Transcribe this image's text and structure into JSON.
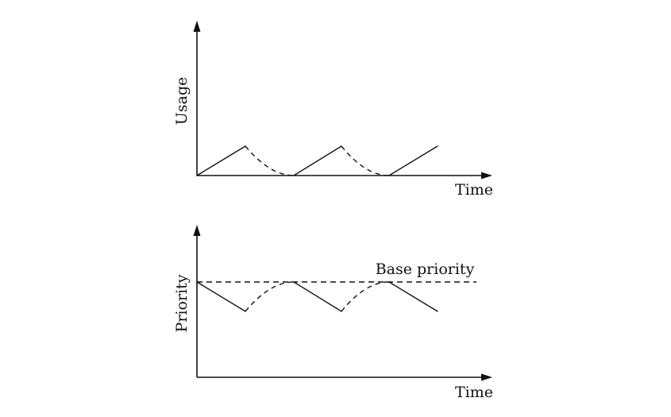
{
  "top_panel": {
    "y_label": "Usage",
    "x_label": "Time"
  },
  "bottom_panel": {
    "y_label": "Priority",
    "x_label": "Time",
    "base_label": "Base priority"
  }
}
